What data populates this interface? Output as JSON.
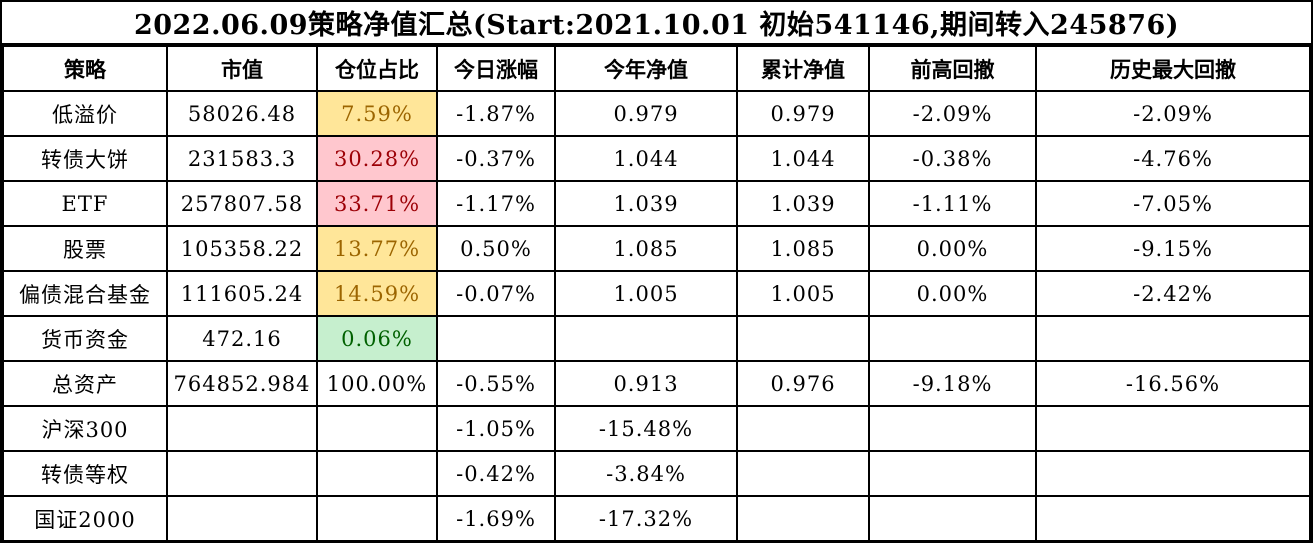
{
  "title": "2022.06.09策略净值汇总(Start:2021.10.01 初始541146,期间转入245876)",
  "table": {
    "headers": [
      "策略",
      "市值",
      "仓位占比",
      "今日涨幅",
      "今年净值",
      "累计净值",
      "前高回撤",
      "历史最大回撤"
    ],
    "rows": [
      {
        "strategy": "低溢价",
        "market_value": "58026.48",
        "position": "7.59%",
        "position_style": "neutral",
        "today_change": "-1.87%",
        "ytd_nav": "0.979",
        "cumulative_nav": "0.979",
        "drawdown_from_high": "-2.09%",
        "max_drawdown": "-2.09%"
      },
      {
        "strategy": "转债大饼",
        "market_value": "231583.3",
        "position": "30.28%",
        "position_style": "bad",
        "today_change": "-0.37%",
        "ytd_nav": "1.044",
        "cumulative_nav": "1.044",
        "drawdown_from_high": "-0.38%",
        "max_drawdown": "-4.76%"
      },
      {
        "strategy": "ETF",
        "market_value": "257807.58",
        "position": "33.71%",
        "position_style": "bad",
        "today_change": "-1.17%",
        "ytd_nav": "1.039",
        "cumulative_nav": "1.039",
        "drawdown_from_high": "-1.11%",
        "max_drawdown": "-7.05%"
      },
      {
        "strategy": "股票",
        "market_value": "105358.22",
        "position": "13.77%",
        "position_style": "neutral",
        "today_change": "0.50%",
        "ytd_nav": "1.085",
        "cumulative_nav": "1.085",
        "drawdown_from_high": "0.00%",
        "max_drawdown": "-9.15%"
      },
      {
        "strategy": "偏债混合基金",
        "market_value": "111605.24",
        "position": "14.59%",
        "position_style": "neutral",
        "today_change": "-0.07%",
        "ytd_nav": "1.005",
        "cumulative_nav": "1.005",
        "drawdown_from_high": "0.00%",
        "max_drawdown": "-2.42%"
      },
      {
        "strategy": "货币资金",
        "market_value": "472.16",
        "position": "0.06%",
        "position_style": "good",
        "today_change": "",
        "ytd_nav": "",
        "cumulative_nav": "",
        "drawdown_from_high": "",
        "max_drawdown": ""
      },
      {
        "strategy": "总资产",
        "market_value": "764852.984",
        "position": "100.00%",
        "position_style": "none",
        "today_change": "-0.55%",
        "ytd_nav": "0.913",
        "cumulative_nav": "0.976",
        "drawdown_from_high": "-9.18%",
        "max_drawdown": "-16.56%"
      },
      {
        "strategy": "沪深300",
        "market_value": "",
        "position": "",
        "position_style": "none",
        "today_change": "-1.05%",
        "ytd_nav": "-15.48%",
        "cumulative_nav": "",
        "drawdown_from_high": "",
        "max_drawdown": ""
      },
      {
        "strategy": "转债等权",
        "market_value": "",
        "position": "",
        "position_style": "none",
        "today_change": "-0.42%",
        "ytd_nav": "-3.84%",
        "cumulative_nav": "",
        "drawdown_from_high": "",
        "max_drawdown": ""
      },
      {
        "strategy": "国证2000",
        "market_value": "",
        "position": "",
        "position_style": "none",
        "today_change": "-1.69%",
        "ytd_nav": "-17.32%",
        "cumulative_nav": "",
        "drawdown_from_high": "",
        "max_drawdown": ""
      }
    ]
  },
  "colors": {
    "background": "#FFFFFF",
    "text": "#000000",
    "border": "#000000",
    "neutral_bg": "#FFE699",
    "neutral_text": "#9C6500",
    "bad_bg": "#FFC7CE",
    "bad_text": "#9C0006",
    "good_bg": "#C6EFCE",
    "good_text": "#006100"
  }
}
